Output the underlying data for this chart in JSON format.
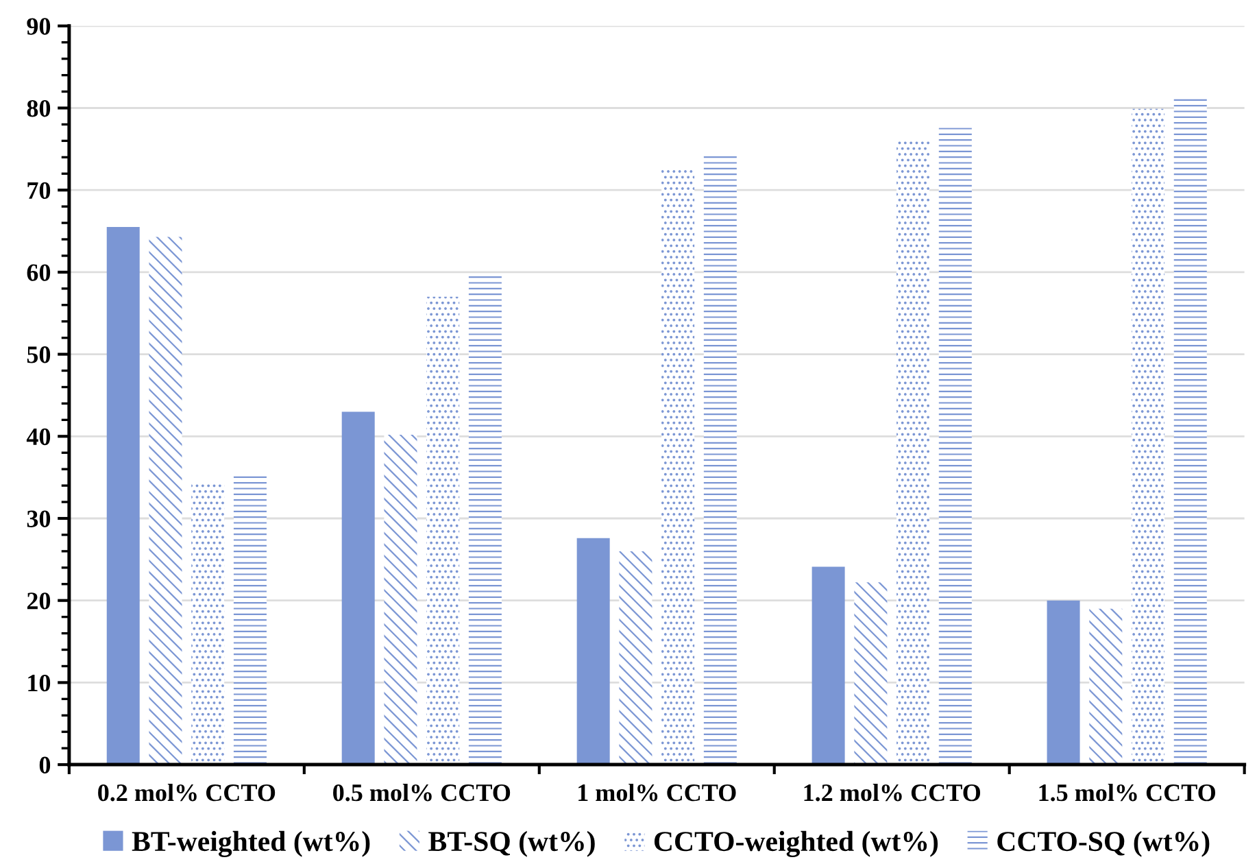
{
  "chart_data": {
    "type": "bar",
    "categories": [
      "0.2 mol% CCTO",
      "0.5 mol% CCTO",
      "1 mol% CCTO",
      "1.2 mol% CCTO",
      "1.5 mol% CCTO"
    ],
    "series": [
      {
        "name": "BT-weighted (wt%)",
        "color": "#7b96d4",
        "values": [
          65.5,
          43.0,
          27.6,
          24.1,
          20.0
        ]
      },
      {
        "name": "BT-SQ (wt%)",
        "color": "#7b96d4",
        "values": [
          64.3,
          40.2,
          26.0,
          22.2,
          19.0
        ]
      },
      {
        "name": "CCTO-weighted (wt%)",
        "color": "#7b96d4",
        "values": [
          34.5,
          57.0,
          72.5,
          76.1,
          79.9
        ]
      },
      {
        "name": "CCTO-SQ (wt%)",
        "color": "#7b96d4",
        "values": [
          35.5,
          59.7,
          74.2,
          77.6,
          81.2
        ]
      }
    ],
    "ylim": [
      0,
      90
    ],
    "yticks": [
      0,
      10,
      20,
      30,
      40,
      50,
      60,
      70,
      80,
      90
    ],
    "grid": "y",
    "legend": "bottom"
  }
}
